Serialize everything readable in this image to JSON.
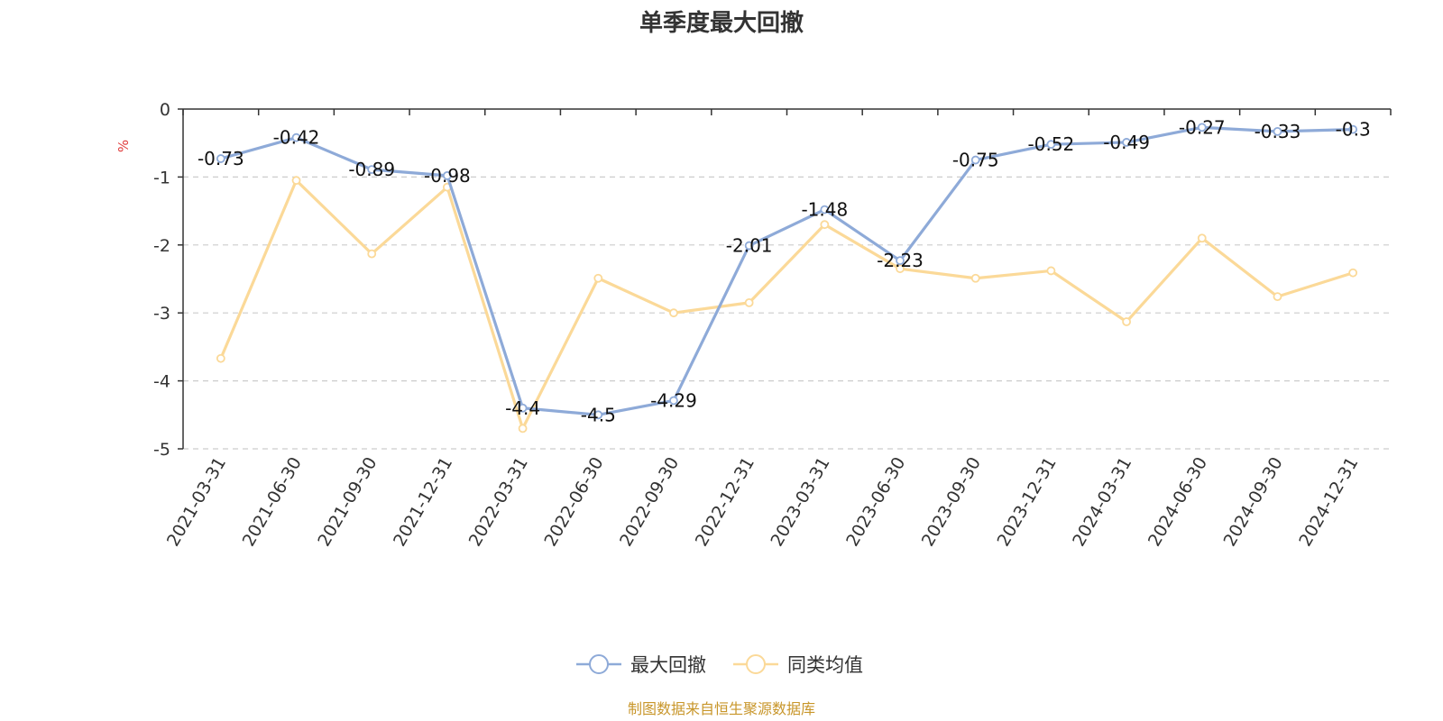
{
  "chart_data": {
    "type": "line",
    "title": "单季度最大回撤",
    "unit": "%",
    "x": [
      "2021-03-31",
      "2021-06-30",
      "2021-09-30",
      "2021-12-31",
      "2022-03-31",
      "2022-06-30",
      "2022-09-30",
      "2022-12-31",
      "2023-03-31",
      "2023-06-30",
      "2023-09-30",
      "2023-12-31",
      "2024-03-31",
      "2024-06-30",
      "2024-09-30",
      "2024-12-31"
    ],
    "ylim": [
      -5,
      0
    ],
    "yticks": [
      0,
      -1,
      -2,
      -3,
      -4,
      -5
    ],
    "grid": true,
    "legend_position": "bottom-center",
    "series": [
      {
        "name": "最大回撤",
        "color": "#8eaad8",
        "show_labels": true,
        "values": [
          -0.73,
          -0.42,
          -0.89,
          -0.98,
          -4.4,
          -4.5,
          -4.29,
          -2.01,
          -1.48,
          -2.23,
          -0.75,
          -0.52,
          -0.49,
          -0.27,
          -0.33,
          -0.3
        ]
      },
      {
        "name": "同类均值",
        "color": "#fbd998",
        "show_labels": false,
        "values": [
          -3.67,
          -1.05,
          -2.13,
          -1.15,
          -4.7,
          -2.49,
          -3.0,
          -2.85,
          -1.7,
          -2.35,
          -2.49,
          -2.38,
          -3.13,
          -1.9,
          -2.76,
          -2.41
        ]
      }
    ]
  },
  "source": "制图数据来自恒生聚源数据库"
}
